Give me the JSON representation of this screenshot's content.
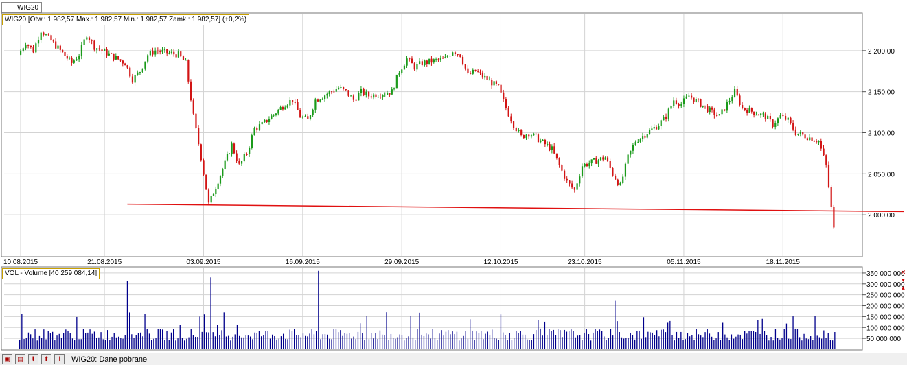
{
  "legend": {
    "label": "WIG20"
  },
  "info_text": "WIG20 [Otw.: 1 982,57  Max.: 1 982,57  Min.: 1 982,57  Zamk.: 1 982,57] (+0,2%)",
  "volume_text": "VOL - Volume [40 259 084,14]",
  "status": {
    "text": "WIG20: Dane pobrane"
  },
  "icons": [
    "chart-frame-icon",
    "print-icon",
    "download-icon",
    "upload-icon",
    "info-icon"
  ],
  "colors": {
    "up": "#1a9a1a",
    "down": "#d21414",
    "trendline": "#e01010",
    "volume": "#00008b",
    "grid": "#d3d3d3"
  },
  "chart_data": [
    {
      "type": "candlestick",
      "series_name": "WIG20",
      "x_tick_labels": [
        "10.08.2015",
        "21.08.2015",
        "03.09.2015",
        "16.09.2015",
        "29.09.2015",
        "12.10.2015",
        "23.10.2015",
        "05.11.2015",
        "18.11.2015"
      ],
      "y_tick_labels": [
        "2 200,00",
        "2 150,00",
        "2 100,00",
        "2 050,00",
        "2 000,00"
      ],
      "y_ticks": [
        2200,
        2150,
        2100,
        2050,
        2000
      ],
      "ylim": [
        1950,
        2245
      ],
      "grid": true,
      "trendline": {
        "from": {
          "date": "24.08.2015",
          "value": 2013
        },
        "to": {
          "date": "25.11.2015",
          "value": 2004
        }
      },
      "close_path": [
        [
          "10.08.2015",
          2195
        ],
        [
          "11.08.2015",
          2210
        ],
        [
          "12.08.2015",
          2200
        ],
        [
          "13.08.2015",
          2225
        ],
        [
          "14.08.2015",
          2215
        ],
        [
          "17.08.2015",
          2185
        ],
        [
          "18.08.2015",
          2195
        ],
        [
          "19.08.2015",
          2220
        ],
        [
          "20.08.2015",
          2205
        ],
        [
          "21.08.2015",
          2200
        ],
        [
          "24.08.2015",
          2185
        ],
        [
          "25.08.2015",
          2165
        ],
        [
          "26.08.2015",
          2175
        ],
        [
          "27.08.2015",
          2195
        ],
        [
          "28.08.2015",
          2200
        ],
        [
          "31.08.2015",
          2195
        ],
        [
          "01.09.2015",
          2185
        ],
        [
          "02.09.2015",
          2120
        ],
        [
          "03.09.2015",
          2070
        ],
        [
          "04.09.2015",
          2013
        ],
        [
          "07.09.2015",
          2085
        ],
        [
          "08.09.2015",
          2060
        ],
        [
          "09.09.2015",
          2075
        ],
        [
          "10.09.2015",
          2105
        ],
        [
          "11.09.2015",
          2110
        ],
        [
          "14.09.2015",
          2135
        ],
        [
          "15.09.2015",
          2140
        ],
        [
          "16.09.2015",
          2120
        ],
        [
          "17.09.2015",
          2115
        ],
        [
          "18.09.2015",
          2140
        ],
        [
          "21.09.2015",
          2155
        ],
        [
          "22.09.2015",
          2150
        ],
        [
          "23.09.2015",
          2140
        ],
        [
          "24.09.2015",
          2150
        ],
        [
          "25.09.2015",
          2145
        ],
        [
          "28.09.2015",
          2150
        ],
        [
          "29.09.2015",
          2175
        ],
        [
          "30.09.2015",
          2190
        ],
        [
          "01.10.2015",
          2180
        ],
        [
          "02.10.2015",
          2185
        ],
        [
          "05.10.2015",
          2190
        ],
        [
          "06.10.2015",
          2200
        ],
        [
          "07.10.2015",
          2195
        ],
        [
          "08.10.2015",
          2170
        ],
        [
          "09.10.2015",
          2175
        ],
        [
          "12.10.2015",
          2155
        ],
        [
          "13.10.2015",
          2130
        ],
        [
          "14.10.2015",
          2110
        ],
        [
          "15.10.2015",
          2095
        ],
        [
          "16.10.2015",
          2100
        ],
        [
          "19.10.2015",
          2080
        ],
        [
          "20.10.2015",
          2060
        ],
        [
          "21.10.2015",
          2040
        ],
        [
          "22.10.2015",
          2030
        ],
        [
          "23.10.2015",
          2060
        ],
        [
          "26.10.2015",
          2070
        ],
        [
          "27.10.2015",
          2050
        ],
        [
          "28.10.2015",
          2035
        ],
        [
          "29.10.2015",
          2070
        ],
        [
          "30.10.2015",
          2090
        ],
        [
          "02.11.2015",
          2110
        ],
        [
          "03.11.2015",
          2120
        ],
        [
          "04.11.2015",
          2140
        ],
        [
          "05.11.2015",
          2135
        ],
        [
          "06.11.2015",
          2145
        ],
        [
          "09.11.2015",
          2125
        ],
        [
          "10.11.2015",
          2120
        ],
        [
          "11.11.2015",
          2135
        ],
        [
          "12.11.2015",
          2150
        ],
        [
          "13.11.2015",
          2130
        ],
        [
          "16.11.2015",
          2120
        ],
        [
          "17.11.2015",
          2110
        ],
        [
          "18.11.2015",
          2120
        ],
        [
          "19.11.2015",
          2115
        ],
        [
          "20.11.2015",
          2100
        ],
        [
          "23.11.2015",
          2090
        ],
        [
          "24.11.2015",
          2060
        ],
        [
          "25.11.2015",
          1982.57
        ]
      ]
    },
    {
      "type": "bar",
      "series_name": "VOL - Volume",
      "y_tick_labels": [
        "350 000 000",
        "300 000 000",
        "250 000 000",
        "200 000 000",
        "150 000 000",
        "100 000 000",
        "50 000 000"
      ],
      "y_ticks": [
        350000000,
        300000000,
        250000000,
        200000000,
        150000000,
        100000000,
        50000000
      ],
      "ylim": [
        0,
        375000000
      ],
      "last_value": 40259084.14,
      "spikes": [
        {
          "date": "24.08.2015",
          "value": 315000000
        },
        {
          "date": "04.09.2015",
          "value": 330000000
        },
        {
          "date": "18.09.2015",
          "value": 360000000
        },
        {
          "date": "12.10.2015",
          "value": 160000000
        },
        {
          "date": "27.10.2015",
          "value": 225000000
        }
      ]
    }
  ]
}
